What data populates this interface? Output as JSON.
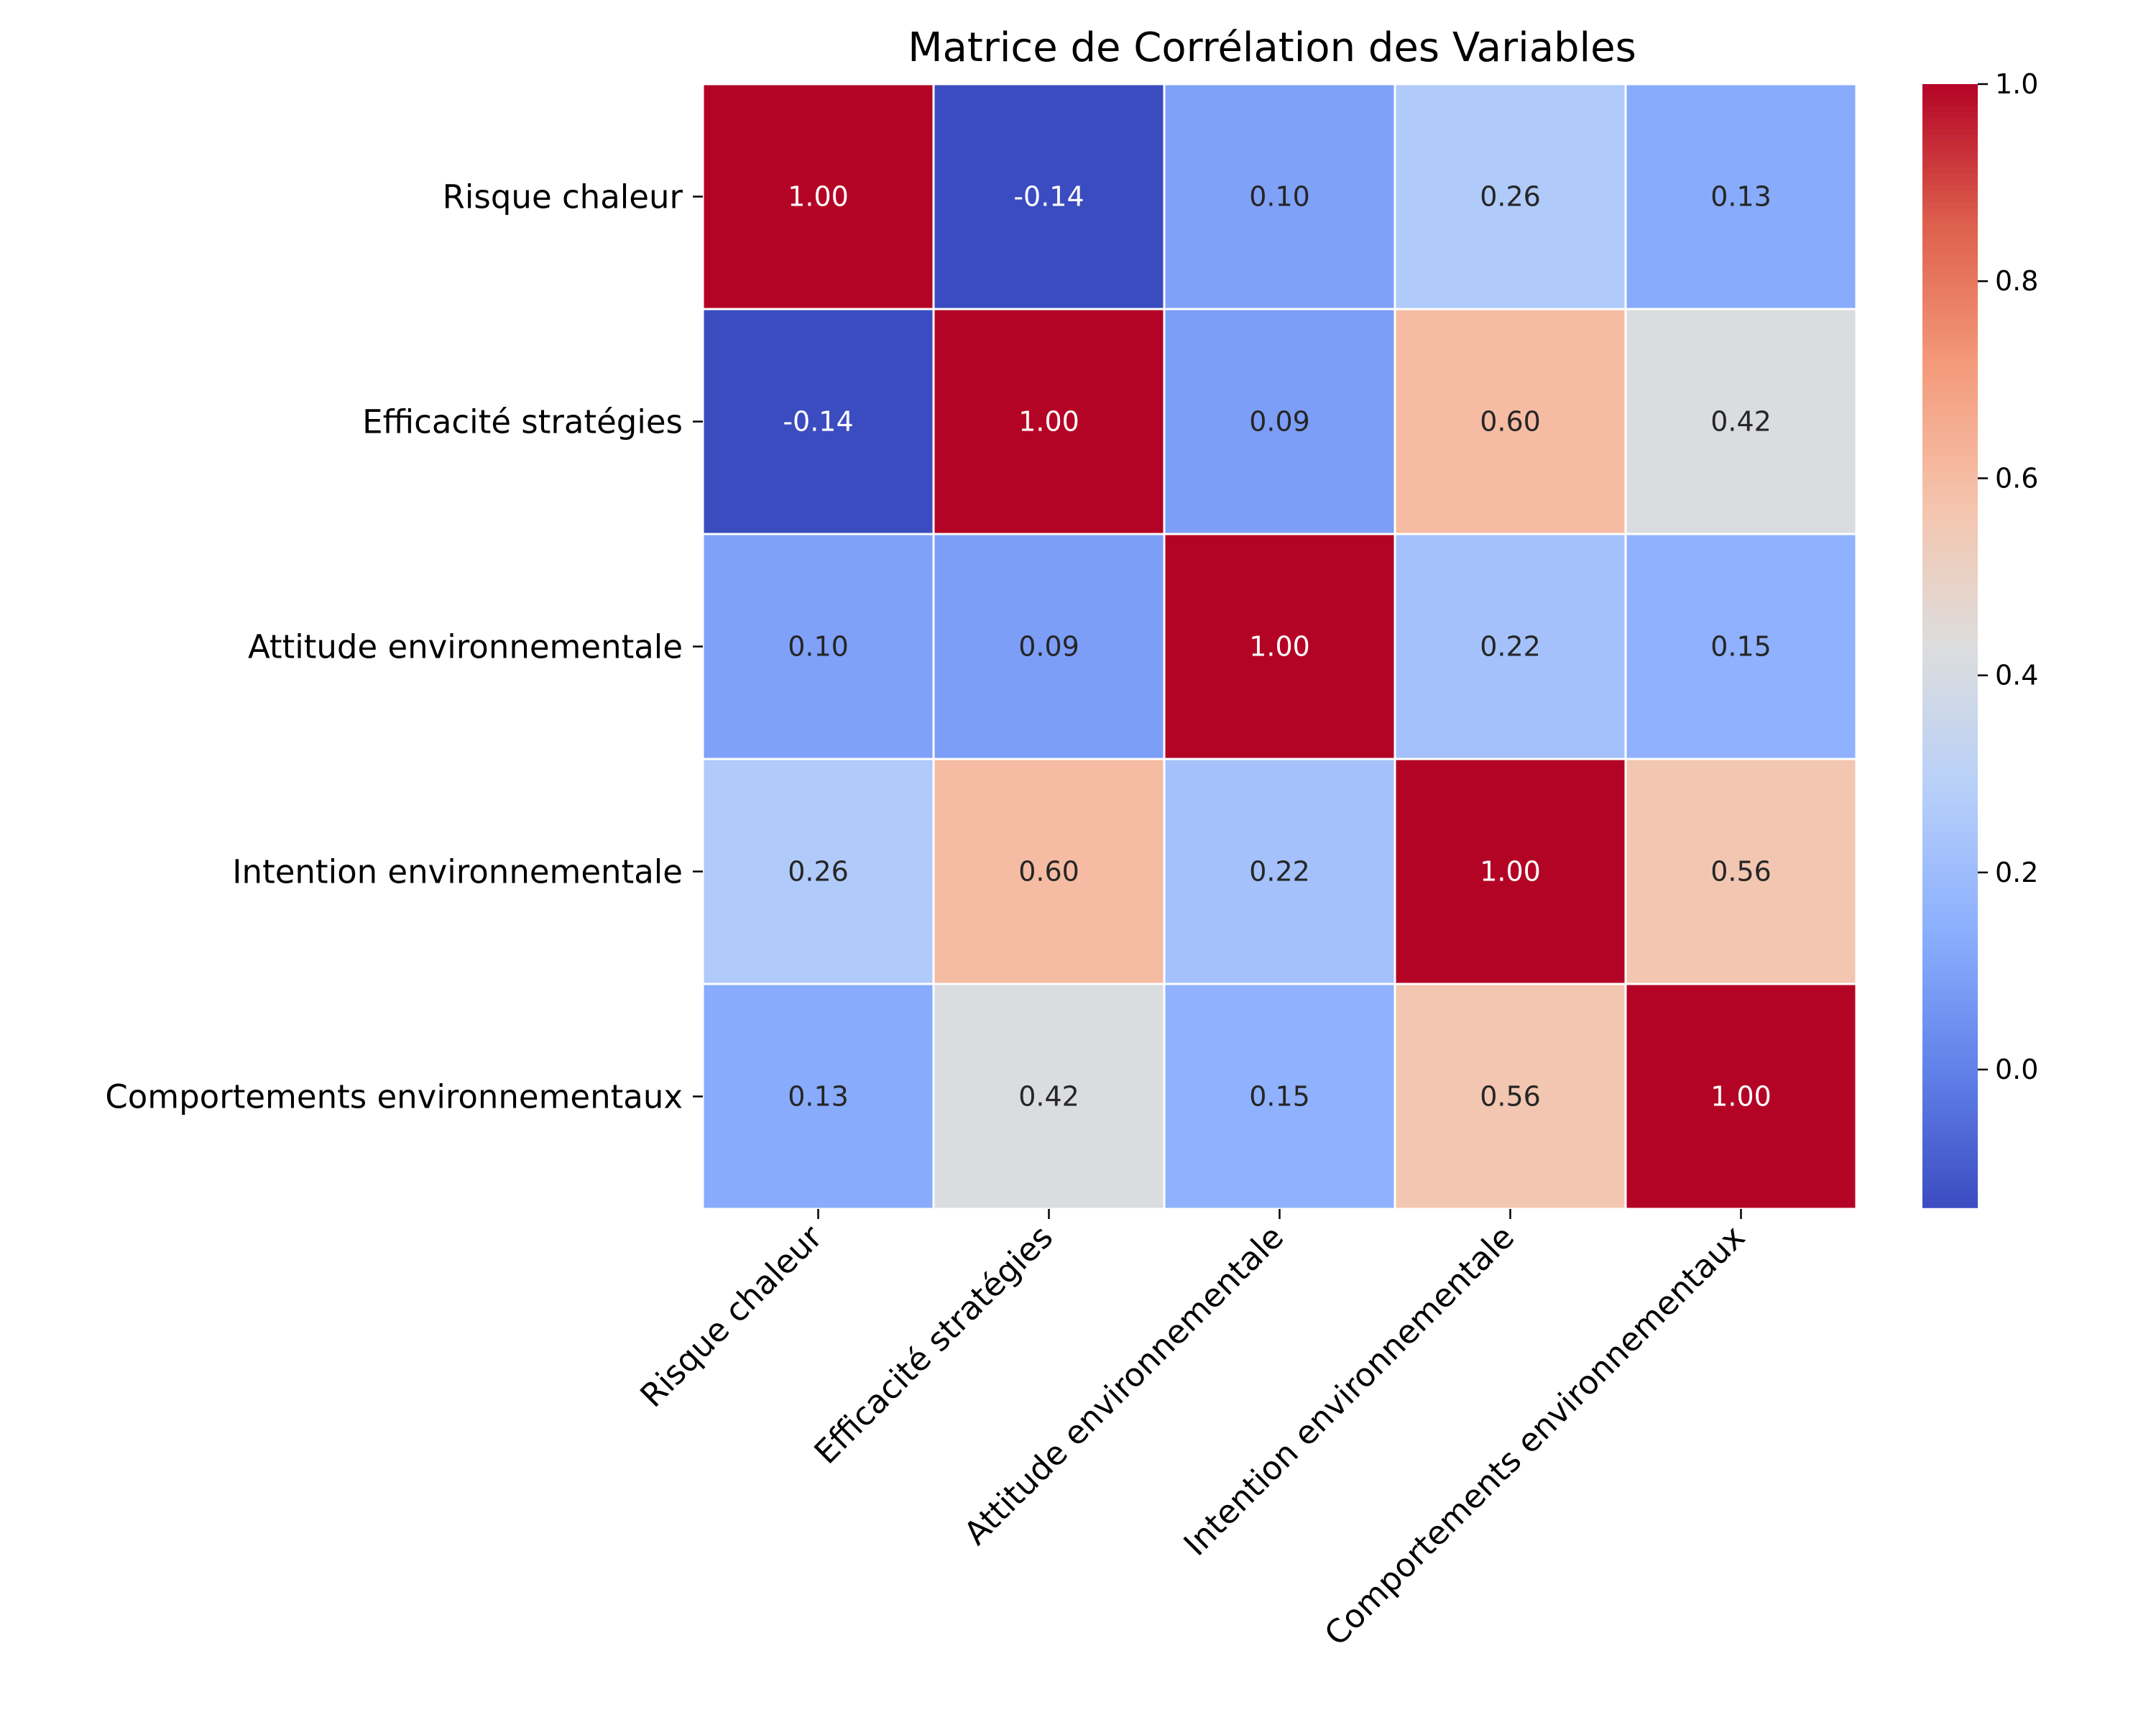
{
  "chart_data": {
    "type": "heatmap",
    "title": "Matrice de Corrélation des Variables",
    "rows": [
      "Risque chaleur",
      "Efficacité stratégies",
      "Attitude environnementale",
      "Intention environnementale",
      "Comportements environnementaux"
    ],
    "columns": [
      "Risque chaleur",
      "Efficacité stratégies",
      "Attitude environnementale",
      "Intention environnementale",
      "Comportements environnementaux"
    ],
    "values": [
      [
        1.0,
        -0.14,
        0.1,
        0.26,
        0.13
      ],
      [
        -0.14,
        1.0,
        0.09,
        0.6,
        0.42
      ],
      [
        0.1,
        0.09,
        1.0,
        0.22,
        0.15
      ],
      [
        0.26,
        0.6,
        0.22,
        1.0,
        0.56
      ],
      [
        0.13,
        0.42,
        0.15,
        0.56,
        1.0
      ]
    ],
    "annotation_format": "0.00",
    "colormap": "coolwarm",
    "color_low": "#3b4cc0",
    "color_mid": "#dddddd",
    "color_high": "#b40426",
    "vmin": -0.14,
    "vmax": 1.0,
    "colorbar": {
      "ticks": [
        0.0,
        0.2,
        0.4,
        0.6,
        0.8,
        1.0
      ],
      "tick_labels": [
        "0.0",
        "0.2",
        "0.4",
        "0.6",
        "0.8",
        "1.0"
      ],
      "placement": "right"
    },
    "xlabel": "",
    "ylabel": "",
    "grid": false
  }
}
